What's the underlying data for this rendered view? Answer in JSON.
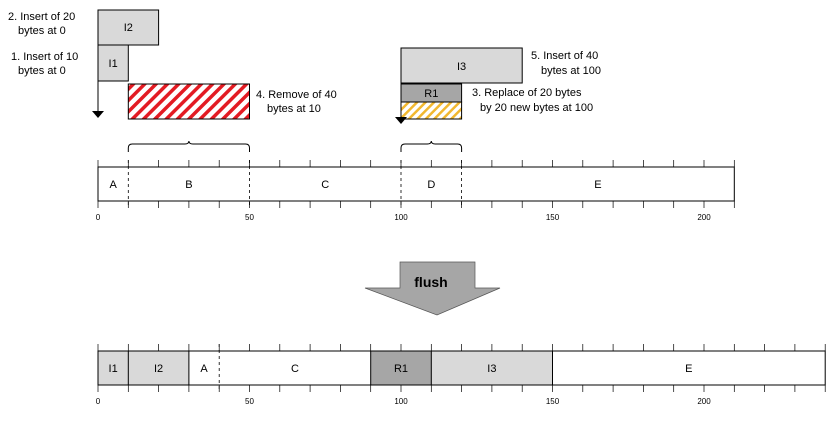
{
  "colors": {
    "insert_fill": "#d9d9d9",
    "replace_fill": "#a6a6a6",
    "remove_stripe": "#e31b23",
    "replace_stripe": "#f2b830",
    "arrow_fill": "#a6a6a6",
    "stroke": "#000000"
  },
  "operations": {
    "i2": {
      "label": "I2",
      "start": 0,
      "len": 20
    },
    "i1": {
      "label": "I1",
      "start": 0,
      "len": 10
    },
    "remove": {
      "start": 10,
      "len": 40
    },
    "i3": {
      "label": "I3",
      "start": 100,
      "len": 40
    },
    "r1": {
      "label": "R1",
      "start": 100,
      "len": 20
    }
  },
  "annotations": {
    "op2": [
      "2. Insert of 20",
      "bytes at 0"
    ],
    "op1": [
      "1. Insert of 10",
      "bytes at 0"
    ],
    "op4": [
      "4. Remove of 40",
      "bytes at 10"
    ],
    "op5": [
      "5. Insert of 40",
      "bytes at 100"
    ],
    "op3": [
      "3. Replace of 20 bytes",
      "by 20 new bytes at 100"
    ]
  },
  "braces": [
    {
      "start": 10,
      "end": 50
    },
    {
      "start": 100,
      "end": 120
    }
  ],
  "before": {
    "axis_max": 210,
    "segments": [
      {
        "label": "A",
        "start": 0,
        "end": 10,
        "kind": "plain"
      },
      {
        "label": "B",
        "start": 10,
        "end": 50,
        "kind": "plain"
      },
      {
        "label": "C",
        "start": 50,
        "end": 100,
        "kind": "plain"
      },
      {
        "label": "D",
        "start": 100,
        "end": 120,
        "kind": "plain"
      },
      {
        "label": "E",
        "start": 120,
        "end": 210,
        "kind": "plain"
      }
    ],
    "dashed_at": [
      10,
      50,
      100,
      120
    ],
    "ticks": [
      "0",
      "50",
      "100",
      "150",
      "200"
    ]
  },
  "flush": {
    "label": "flush"
  },
  "after": {
    "axis_max": 240,
    "segments": [
      {
        "label": "I1",
        "start": 0,
        "end": 10,
        "kind": "insert"
      },
      {
        "label": "I2",
        "start": 10,
        "end": 30,
        "kind": "insert"
      },
      {
        "label": "A",
        "start": 30,
        "end": 40,
        "kind": "plain"
      },
      {
        "label": "C",
        "start": 40,
        "end": 90,
        "kind": "plain"
      },
      {
        "label": "R1",
        "start": 90,
        "end": 110,
        "kind": "replace"
      },
      {
        "label": "I3",
        "start": 110,
        "end": 150,
        "kind": "insert"
      },
      {
        "label": "E",
        "start": 150,
        "end": 240,
        "kind": "plain"
      }
    ],
    "dashed_at": [
      40
    ],
    "ticks": [
      "0",
      "50",
      "100",
      "150",
      "200"
    ]
  }
}
